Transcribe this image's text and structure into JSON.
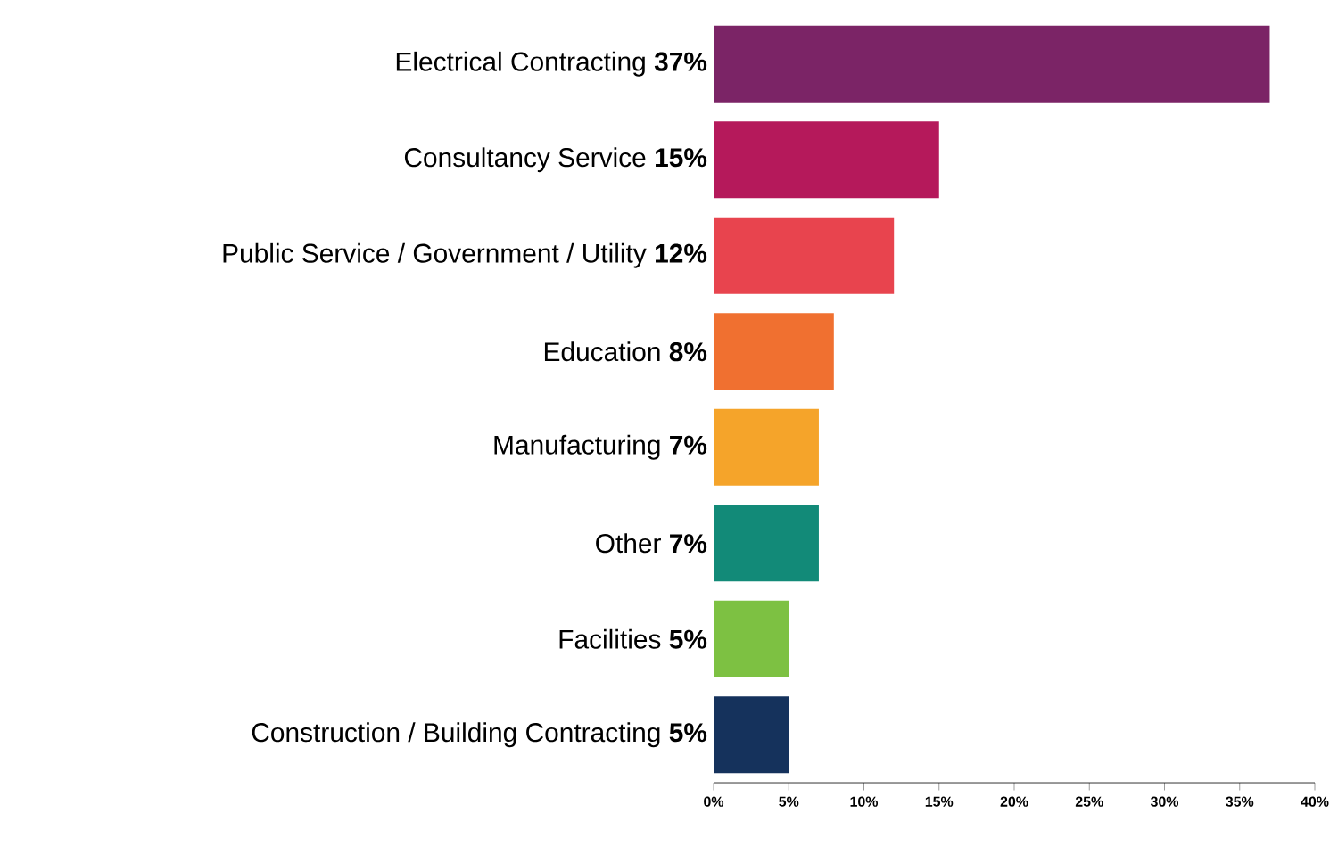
{
  "chart_data": {
    "type": "bar",
    "orientation": "horizontal",
    "categories": [
      "Electrical Contracting **37%**",
      "Consultancy Service **15%**",
      "Public Service / Government / Utility **12%**",
      "Education **8%**",
      "Manufacturing **7%**",
      "Other **7%**",
      "Facilities **5%**",
      "Construction / Building Contracting **5%**"
    ],
    "values": [
      37,
      15,
      12,
      8,
      7,
      7,
      5,
      5
    ],
    "colors": [
      "#7b2466",
      "#b5195b",
      "#e8444e",
      "#f07030",
      "#f5a42a",
      "#128a78",
      "#7dc142",
      "#15325c"
    ],
    "xlim": [
      0,
      40
    ],
    "xticks": [
      {
        "value": 0,
        "label": "0%"
      },
      {
        "value": 5,
        "label": "5%"
      },
      {
        "value": 10,
        "label": "10%"
      },
      {
        "value": 15,
        "label": "15%"
      },
      {
        "value": 20,
        "label": "20%"
      },
      {
        "value": 25,
        "label": "25%"
      },
      {
        "value": 30,
        "label": "30%"
      },
      {
        "value": 35,
        "label": "35%"
      },
      {
        "value": 40,
        "label": "40%"
      }
    ],
    "grid": false
  }
}
